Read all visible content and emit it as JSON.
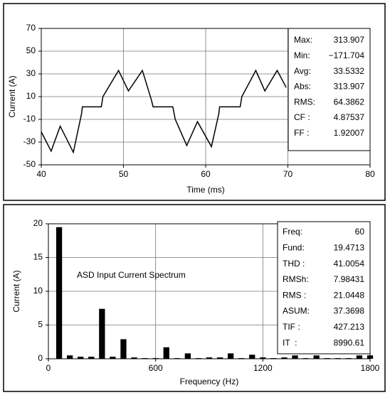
{
  "chart_data": [
    {
      "type": "line",
      "ylabel": "Current (A)",
      "xlabel": "Time (ms)",
      "x": [
        40,
        41.2,
        42.3,
        43.9,
        44.9,
        45.0,
        47.3,
        47.5,
        49.4,
        50.6,
        52.3,
        53.4,
        53.6,
        56.0,
        56.3,
        57.7,
        59.0,
        60.7,
        61.6,
        61.7,
        64.2,
        64.4,
        66.1,
        67.2,
        68.7,
        69.8
      ],
      "values": [
        -21,
        -38,
        -16,
        -39,
        -5,
        1,
        1,
        10,
        33,
        15,
        33,
        7,
        1,
        1,
        -10,
        -33,
        -12,
        -34,
        -5,
        1,
        1,
        10,
        33,
        15,
        33,
        18
      ],
      "color": "#000000",
      "xlim": [
        40,
        80
      ],
      "xticks": [
        40,
        50,
        60,
        70,
        80
      ],
      "ylim": [
        -50,
        70
      ],
      "yticks": [
        -50,
        -30,
        -10,
        10,
        30,
        50,
        70
      ],
      "grid": true,
      "stats": [
        {
          "label": "Max:",
          "value": "313.907"
        },
        {
          "label": "Min:",
          "value": "−171.704"
        },
        {
          "label": "Avg:",
          "value": "33.5332"
        },
        {
          "label": "Abs:",
          "value": "313.907"
        },
        {
          "label": "RMS:",
          "value": "64.3862"
        },
        {
          "label": "CF :",
          "value": "4.87537"
        },
        {
          "label": "FF :",
          "value": "1.92007"
        }
      ]
    },
    {
      "type": "bar",
      "ylabel": "Current (A)",
      "xlabel": "Frequency (Hz)",
      "annotation": "ASD Input Current Spectrum",
      "x": [
        60,
        120,
        180,
        240,
        300,
        360,
        420,
        480,
        540,
        600,
        660,
        720,
        780,
        840,
        900,
        960,
        1020,
        1080,
        1140,
        1200,
        1260,
        1320,
        1380,
        1440,
        1500,
        1560,
        1620,
        1680,
        1740,
        1800
      ],
      "values": [
        19.5,
        0.5,
        0.3,
        0.3,
        7.4,
        0.3,
        2.9,
        0.2,
        0.1,
        0.1,
        1.7,
        0.1,
        0.8,
        0.1,
        0.2,
        0.2,
        0.8,
        0.1,
        0.6,
        0.2,
        0.1,
        0.2,
        0.5,
        0.1,
        0.5,
        0.1,
        0.1,
        0.1,
        0.5,
        0.5
      ],
      "color": "#000000",
      "xlim": [
        0,
        1800
      ],
      "xticks": [
        0,
        600,
        1200,
        1800
      ],
      "ylim": [
        0,
        20
      ],
      "yticks": [
        0,
        5,
        10,
        15,
        20
      ],
      "grid": true,
      "stats": [
        {
          "label": "Freq:",
          "value": "60"
        },
        {
          "label": "Fund:",
          "value": "19.4713"
        },
        {
          "label": "THD :",
          "value": "41.0054"
        },
        {
          "label": "RMSh:",
          "value": "7.98431"
        },
        {
          "label": "RMS :",
          "value": "21.0448"
        },
        {
          "label": "ASUM:",
          "value": "37.3698"
        },
        {
          "label": "TIF :",
          "value": "427.213"
        },
        {
          "label": "IT  :",
          "value": "8990.61"
        }
      ]
    }
  ]
}
